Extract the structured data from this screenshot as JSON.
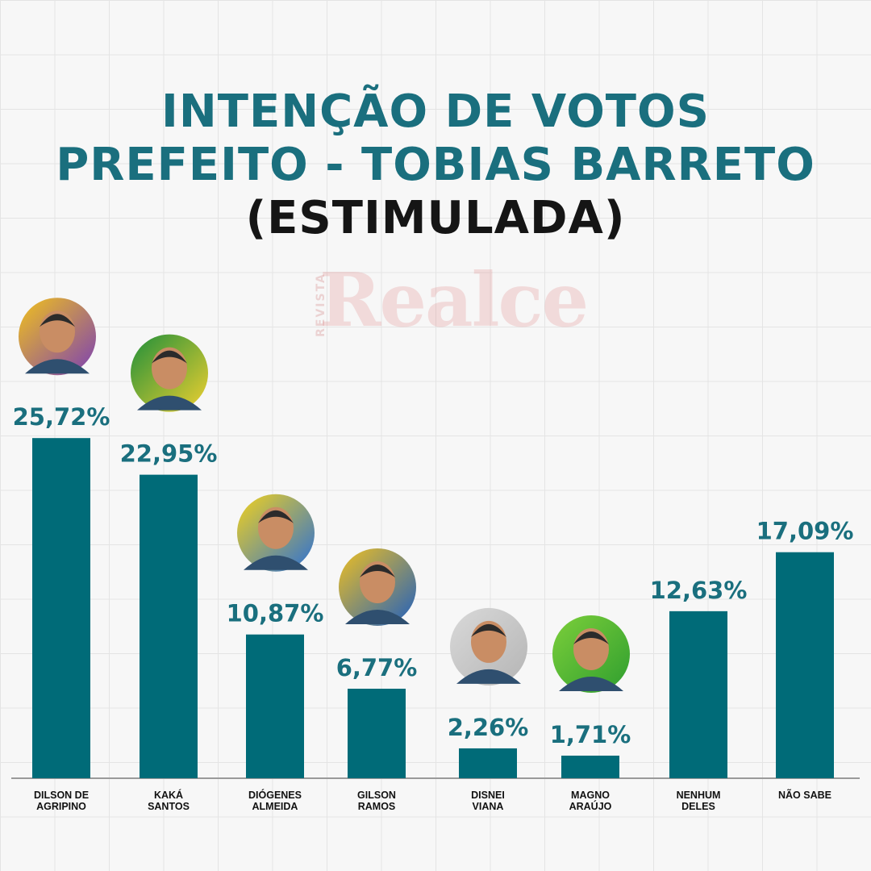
{
  "title": {
    "line1": "INTENÇÃO DE VOTOS",
    "line2": "PREFEITO - TOBIAS BARRETO",
    "line3": "(ESTIMULADA)"
  },
  "watermark": {
    "main": "Realce",
    "side": "REVISTA"
  },
  "colors": {
    "bar": "#006b78",
    "value_label": "#1a6f7e",
    "title_accent": "#1a6f7e",
    "title_dark": "#151515",
    "axis": "#9a9a9a"
  },
  "chart_data": {
    "type": "bar",
    "title": "INTENÇÃO DE VOTOS PREFEITO - TOBIAS BARRETO (ESTIMULADA)",
    "categories": [
      "DILSON DE\nAGRIPINO",
      "KAKÁ\nSANTOS",
      "DIÓGENES\nALMEIDA",
      "GILSON\nRAMOS",
      "DISNEI\nVIANA",
      "MAGNO\nARAÚJO",
      "NENHUM\nDELES",
      "NÃO SABE"
    ],
    "values": [
      25.72,
      22.95,
      10.87,
      6.77,
      2.26,
      1.71,
      12.63,
      17.09
    ],
    "value_labels": [
      "25,72%",
      "22,95%",
      "10,87%",
      "6,77%",
      "2,26%",
      "1,71%",
      "12,63%",
      "17,09%"
    ],
    "unit": "%",
    "ylim": [
      0,
      27
    ],
    "grid": false,
    "legend": "none",
    "photos": [
      "candidate-photo",
      "candidate-photo",
      "candidate-photo",
      "candidate-photo",
      "candidate-photo",
      "candidate-photo",
      null,
      null
    ]
  }
}
